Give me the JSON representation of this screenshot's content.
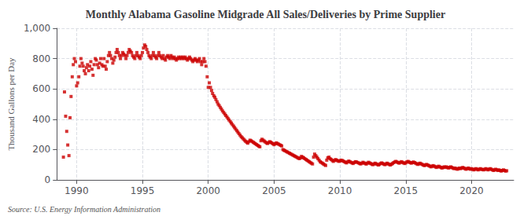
{
  "chart_data": {
    "type": "scatter",
    "title": "Monthly Alabama Gasoline Midgrade All Sales/Deliveries by Prime Supplier",
    "ylabel": "Thousand Gallons per Day",
    "annotations": [
      "Source: U.S. Energy Information Administration"
    ],
    "color": "#cc0000",
    "marker": "square",
    "grid": true,
    "xlim": [
      1988.5,
      2023.2
    ],
    "xticks": [
      1990,
      1995,
      2000,
      2005,
      2010,
      2015,
      2020
    ],
    "ylim": [
      0,
      1000
    ],
    "yticks": [
      0,
      200,
      400,
      600,
      800,
      {
        "value": 1000,
        "label": "1,000"
      }
    ],
    "x": [
      1989.0,
      1989.08,
      1989.17,
      1989.25,
      1989.33,
      1989.42,
      1989.5,
      1989.58,
      1989.67,
      1989.75,
      1989.83,
      1989.92,
      1990.0,
      1990.08,
      1990.17,
      1990.25,
      1990.33,
      1990.42,
      1990.5,
      1990.58,
      1990.67,
      1990.75,
      1990.83,
      1990.92,
      1991.0,
      1991.08,
      1991.17,
      1991.25,
      1991.33,
      1991.42,
      1991.5,
      1991.58,
      1991.67,
      1991.75,
      1991.83,
      1991.92,
      1992.0,
      1992.08,
      1992.17,
      1992.25,
      1992.33,
      1992.42,
      1992.5,
      1992.58,
      1992.67,
      1992.75,
      1992.83,
      1992.92,
      1993.0,
      1993.08,
      1993.17,
      1993.25,
      1993.33,
      1993.42,
      1993.5,
      1993.58,
      1993.67,
      1993.75,
      1993.83,
      1993.92,
      1994.0,
      1994.08,
      1994.17,
      1994.25,
      1994.33,
      1994.42,
      1994.5,
      1994.58,
      1994.67,
      1994.75,
      1994.83,
      1994.92,
      1995.0,
      1995.08,
      1995.17,
      1995.25,
      1995.33,
      1995.42,
      1995.5,
      1995.58,
      1995.67,
      1995.75,
      1995.83,
      1995.92,
      1996.0,
      1996.08,
      1996.17,
      1996.25,
      1996.33,
      1996.42,
      1996.5,
      1996.58,
      1996.67,
      1996.75,
      1996.83,
      1996.92,
      1997.0,
      1997.08,
      1997.17,
      1997.25,
      1997.33,
      1997.42,
      1997.5,
      1997.58,
      1997.67,
      1997.75,
      1997.83,
      1997.92,
      1998.0,
      1998.08,
      1998.17,
      1998.25,
      1998.33,
      1998.42,
      1998.5,
      1998.58,
      1998.67,
      1998.75,
      1998.83,
      1998.92,
      1999.0,
      1999.08,
      1999.17,
      1999.25,
      1999.33,
      1999.42,
      1999.5,
      1999.58,
      1999.67,
      1999.75,
      1999.83,
      1999.92,
      2000.0,
      2000.08,
      2000.17,
      2000.25,
      2000.33,
      2000.42,
      2000.5,
      2000.58,
      2000.67,
      2000.75,
      2000.83,
      2000.92,
      2001.0,
      2001.08,
      2001.17,
      2001.25,
      2001.33,
      2001.42,
      2001.5,
      2001.58,
      2001.67,
      2001.75,
      2001.83,
      2001.92,
      2002.0,
      2002.08,
      2002.17,
      2002.25,
      2002.33,
      2002.42,
      2002.5,
      2002.58,
      2002.67,
      2002.75,
      2002.83,
      2002.92,
      2003.0,
      2003.08,
      2003.17,
      2003.25,
      2003.33,
      2003.42,
      2003.5,
      2003.58,
      2003.67,
      2003.75,
      2003.83,
      2003.92,
      2004.0,
      2004.08,
      2004.17,
      2004.25,
      2004.33,
      2004.42,
      2004.5,
      2004.58,
      2004.67,
      2004.75,
      2004.83,
      2004.92,
      2005.0,
      2005.08,
      2005.17,
      2005.25,
      2005.33,
      2005.42,
      2005.5,
      2005.58,
      2005.67,
      2005.75,
      2005.83,
      2005.92,
      2006.0,
      2006.08,
      2006.17,
      2006.25,
      2006.33,
      2006.42,
      2006.5,
      2006.58,
      2006.67,
      2006.75,
      2006.83,
      2006.92,
      2007.0,
      2007.08,
      2007.17,
      2007.25,
      2007.33,
      2007.42,
      2007.5,
      2007.58,
      2007.67,
      2007.75,
      2007.83,
      2007.92,
      2008.0,
      2008.08,
      2008.17,
      2008.25,
      2008.33,
      2008.42,
      2008.5,
      2008.58,
      2008.67,
      2008.75,
      2008.83,
      2008.92,
      2009.0,
      2009.08,
      2009.17,
      2009.25,
      2009.33,
      2009.42,
      2009.5,
      2009.58,
      2009.67,
      2009.75,
      2009.83,
      2009.92,
      2010.0,
      2010.08,
      2010.17,
      2010.25,
      2010.33,
      2010.42,
      2010.5,
      2010.58,
      2010.67,
      2010.75,
      2010.83,
      2010.92,
      2011.0,
      2011.08,
      2011.17,
      2011.25,
      2011.33,
      2011.42,
      2011.5,
      2011.58,
      2011.67,
      2011.75,
      2011.83,
      2011.92,
      2012.0,
      2012.08,
      2012.17,
      2012.25,
      2012.33,
      2012.42,
      2012.5,
      2012.58,
      2012.67,
      2012.75,
      2012.83,
      2012.92,
      2013.0,
      2013.08,
      2013.17,
      2013.25,
      2013.33,
      2013.42,
      2013.5,
      2013.58,
      2013.67,
      2013.75,
      2013.83,
      2013.92,
      2014.0,
      2014.08,
      2014.17,
      2014.25,
      2014.33,
      2014.42,
      2014.5,
      2014.58,
      2014.67,
      2014.75,
      2014.83,
      2014.92,
      2015.0,
      2015.08,
      2015.17,
      2015.25,
      2015.33,
      2015.42,
      2015.5,
      2015.58,
      2015.67,
      2015.75,
      2015.83,
      2015.92,
      2016.0,
      2016.08,
      2016.17,
      2016.25,
      2016.33,
      2016.42,
      2016.5,
      2016.58,
      2016.67,
      2016.75,
      2016.83,
      2016.92,
      2017.0,
      2017.08,
      2017.17,
      2017.25,
      2017.33,
      2017.42,
      2017.5,
      2017.58,
      2017.67,
      2017.75,
      2017.83,
      2017.92,
      2018.0,
      2018.08,
      2018.17,
      2018.25,
      2018.33,
      2018.42,
      2018.5,
      2018.58,
      2018.67,
      2018.75,
      2018.83,
      2018.92,
      2019.0,
      2019.08,
      2019.17,
      2019.25,
      2019.33,
      2019.42,
      2019.5,
      2019.58,
      2019.67,
      2019.75,
      2019.83,
      2019.92,
      2020.0,
      2020.08,
      2020.17,
      2020.25,
      2020.33,
      2020.42,
      2020.5,
      2020.58,
      2020.67,
      2020.75,
      2020.83,
      2020.92,
      2021.0,
      2021.08,
      2021.17,
      2021.25,
      2021.33,
      2021.42,
      2021.5,
      2021.58,
      2021.67,
      2021.75,
      2021.83,
      2021.92,
      2022.0,
      2022.08,
      2022.17,
      2022.25,
      2022.33,
      2022.42,
      2022.5,
      2022.58,
      2022.67
    ],
    "values": [
      150,
      580,
      420,
      320,
      230,
      160,
      410,
      550,
      680,
      760,
      800,
      780,
      620,
      640,
      680,
      750,
      800,
      770,
      750,
      720,
      700,
      740,
      760,
      720,
      750,
      780,
      730,
      690,
      760,
      800,
      790,
      760,
      740,
      770,
      800,
      760,
      750,
      800,
      750,
      730,
      780,
      820,
      840,
      820,
      800,
      770,
      790,
      810,
      840,
      860,
      840,
      820,
      800,
      820,
      840,
      830,
      820,
      800,
      820,
      840,
      860,
      850,
      840,
      820,
      810,
      800,
      820,
      840,
      820,
      810,
      800,
      820,
      840,
      870,
      890,
      880,
      860,
      840,
      820,
      810,
      800,
      820,
      840,
      820,
      810,
      800,
      820,
      840,
      820,
      810,
      800,
      820,
      800,
      790,
      810,
      820,
      810,
      800,
      820,
      810,
      800,
      810,
      800,
      790,
      800,
      810,
      800,
      810,
      800,
      810,
      800,
      810,
      800,
      790,
      800,
      810,
      800,
      790,
      780,
      790,
      800,
      790,
      780,
      790,
      800,
      780,
      760,
      780,
      800,
      780,
      750,
      680,
      610,
      640,
      610,
      590,
      570,
      555,
      545,
      530,
      515,
      500,
      490,
      478,
      467,
      455,
      445,
      435,
      425,
      415,
      405,
      395,
      385,
      375,
      365,
      355,
      345,
      335,
      325,
      315,
      305,
      295,
      285,
      278,
      270,
      262,
      255,
      248,
      242,
      252,
      262,
      258,
      253,
      248,
      243,
      238,
      233,
      228,
      223,
      218,
      258,
      268,
      262,
      256,
      250,
      244,
      240,
      246,
      252,
      248,
      243,
      238,
      232,
      238,
      244,
      240,
      236,
      232,
      228,
      224,
      200,
      196,
      192,
      188,
      184,
      180,
      176,
      172,
      168,
      164,
      160,
      156,
      152,
      148,
      144,
      140,
      145,
      155,
      150,
      145,
      140,
      135,
      130,
      125,
      120,
      115,
      110,
      105,
      150,
      170,
      160,
      150,
      140,
      130,
      120,
      115,
      110,
      105,
      100,
      95,
      130,
      145,
      150,
      140,
      135,
      128,
      122,
      128,
      134,
      130,
      126,
      122,
      125,
      130,
      128,
      124,
      120,
      116,
      112,
      118,
      124,
      120,
      116,
      112,
      108,
      114,
      120,
      118,
      115,
      112,
      108,
      105,
      110,
      116,
      112,
      108,
      104,
      110,
      116,
      112,
      108,
      104,
      100,
      105,
      110,
      106,
      102,
      98,
      102,
      108,
      112,
      108,
      104,
      100,
      105,
      110,
      106,
      102,
      98,
      103,
      108,
      114,
      118,
      122,
      118,
      114,
      110,
      115,
      120,
      116,
      112,
      108,
      112,
      118,
      122,
      118,
      114,
      110,
      114,
      118,
      114,
      110,
      106,
      102,
      106,
      110,
      106,
      102,
      98,
      94,
      98,
      102,
      98,
      94,
      90,
      86,
      90,
      94,
      90,
      86,
      82,
      86,
      90,
      86,
      82,
      78,
      82,
      86,
      82,
      86,
      82,
      78,
      82,
      86,
      82,
      78,
      74,
      78,
      74,
      70,
      74,
      78,
      74,
      78,
      82,
      78,
      74,
      70,
      74,
      78,
      74,
      70,
      74,
      70,
      66,
      70,
      74,
      70,
      66,
      70,
      74,
      70,
      68,
      66,
      70,
      74,
      70,
      66,
      70,
      74,
      70,
      66,
      62,
      66,
      70,
      66,
      62,
      66,
      62,
      58,
      62,
      66,
      62,
      58,
      60
    ]
  }
}
